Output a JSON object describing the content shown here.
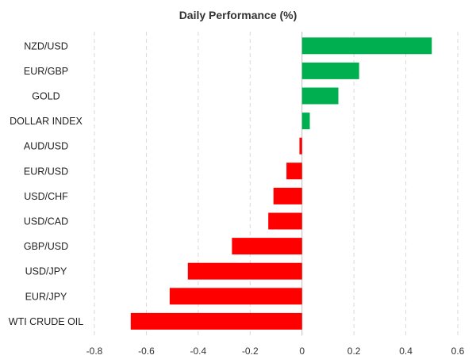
{
  "chart_data": {
    "type": "bar",
    "orientation": "horizontal",
    "title": "Daily Performance (%)",
    "xlabel": "",
    "ylabel": "",
    "categories": [
      "NZD/USD",
      "EUR/GBP",
      "GOLD",
      "DOLLAR INDEX",
      "AUD/USD",
      "EUR/USD",
      "USD/CHF",
      "USD/CAD",
      "GBP/USD",
      "USD/JPY",
      "EUR/JPY",
      "WTI CRUDE OIL"
    ],
    "values": [
      0.5,
      0.22,
      0.14,
      0.03,
      -0.01,
      -0.06,
      -0.11,
      -0.13,
      -0.27,
      -0.44,
      -0.51,
      -0.66
    ],
    "xlim": [
      -0.8,
      0.6
    ],
    "xticks": [
      "-0.8",
      "-0.6",
      "-0.4",
      "-0.2",
      "0",
      "0.2",
      "0.4",
      "0.6"
    ],
    "grid": true,
    "legend": "none",
    "colors": {
      "positive": "#00b050",
      "negative": "#ff0000"
    }
  }
}
